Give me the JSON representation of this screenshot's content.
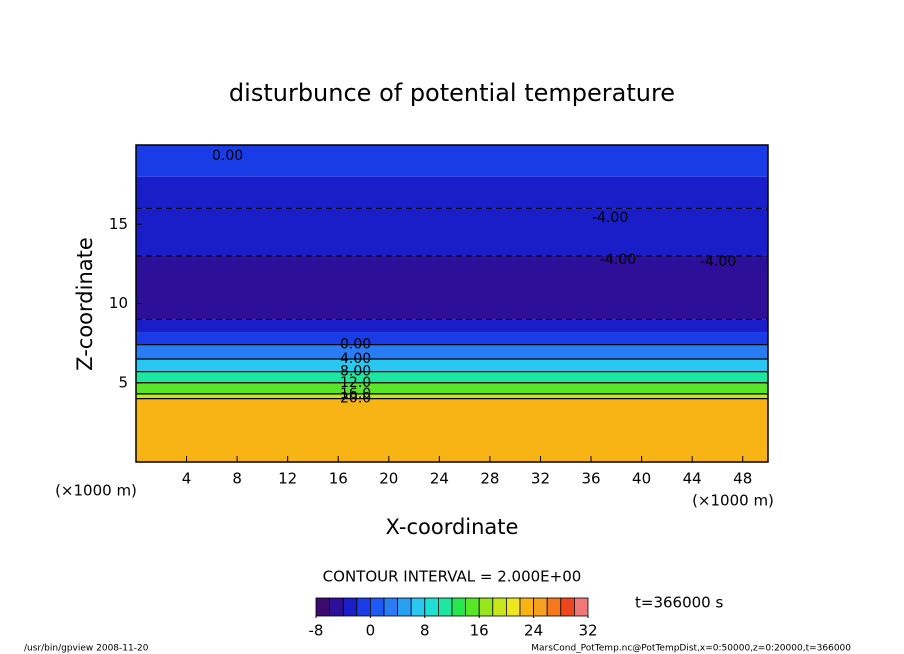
{
  "chart_data": {
    "type": "contour",
    "title": "disturbunce of potential temperature",
    "x_label": "X-coordinate",
    "y_label": "Z-coordinate",
    "x_unit": "(×1000 m)",
    "y_unit": "(×1000 m)",
    "xlim": [
      0,
      50
    ],
    "xticks": [
      4,
      8,
      12,
      16,
      20,
      24,
      28,
      32,
      36,
      40,
      44,
      48
    ],
    "ylim": [
      0,
      20
    ],
    "yticks": [
      5,
      10,
      15
    ],
    "y": [
      0,
      4,
      4.3,
      5,
      5.7,
      6.5,
      7.4,
      8.2,
      9,
      13,
      16,
      18,
      20
    ],
    "values": [
      23,
      19,
      15,
      11,
      7,
      3,
      -1,
      -3,
      -5,
      -4,
      -3,
      -2
    ],
    "contour_labels": [
      {
        "value": 0,
        "label": "0.00"
      },
      {
        "value": 4,
        "label": "4.00"
      },
      {
        "value": 8,
        "label": "8.00"
      },
      {
        "value": 12,
        "label": "12.0"
      },
      {
        "value": 16,
        "label": "16.0"
      },
      {
        "value": 20,
        "label": "20.0"
      }
    ],
    "annotations": [
      "0.00",
      "-4.00",
      "-4.00",
      "-4.00"
    ],
    "contour_interval": "CONTOUR INTERVAL = 2.000E+00",
    "time": "t=366000 s",
    "colorbar": {
      "lim": [
        -8,
        32
      ],
      "ticks": [
        -8,
        0,
        8,
        16,
        24,
        32
      ],
      "colors": [
        "#3c0a6e",
        "#2d0f9a",
        "#1a1ec8",
        "#1a3ce6",
        "#1e5af5",
        "#2a7cf5",
        "#2aa0f5",
        "#2ac8f0",
        "#1ee0d2",
        "#1ee6a0",
        "#28e650",
        "#5ae628",
        "#96e61e",
        "#c8e61e",
        "#f0e61e",
        "#f8b414",
        "#f5a01e",
        "#f5781e",
        "#f0461e",
        "#f07878"
      ]
    },
    "footer_left": "/usr/bin/gpview   2008-11-20",
    "footer_right": "MarsCond_PotTemp.nc@PotTempDist,x=0:50000,z=0:20000,t=366000"
  }
}
